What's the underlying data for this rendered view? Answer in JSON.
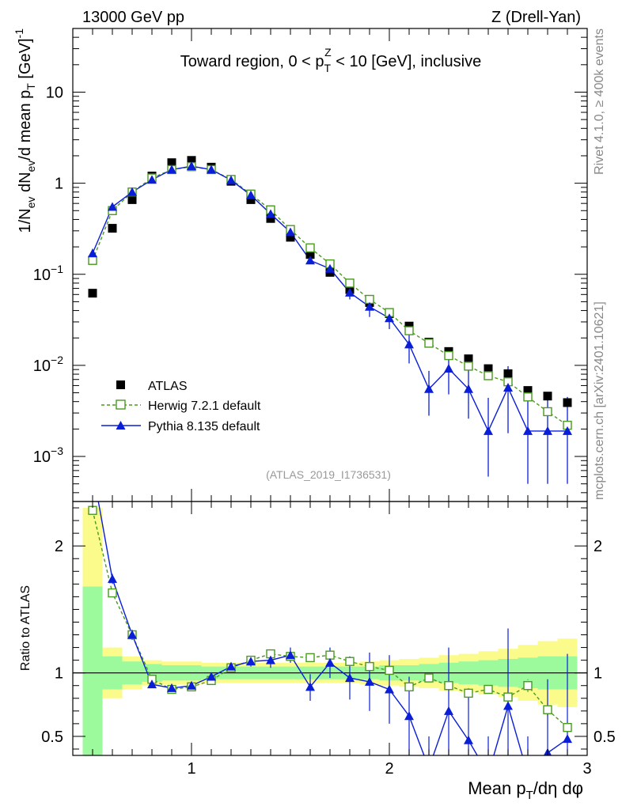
{
  "header": {
    "energy_label": "13000 GeV pp",
    "process_label": "Z (Drell-Yan)"
  },
  "side_labels": {
    "rivet": "Rivet 4.1.0, ≥ 400k events",
    "mcplots": "mcplots.cern.ch [arXiv:2401.10621]"
  },
  "colors": {
    "atlas": "#000000",
    "herwig": "#4a9a1e",
    "pythia": "#0a1ed8",
    "band_inner": "#9cf99c",
    "band_outer": "#fbfb8c"
  },
  "chart_data": [
    {
      "type": "scatter",
      "panel": "main",
      "title": "Toward region, 0 < p_T^Z < 10 [GeV], inclusive",
      "title_parts": {
        "pre": "Toward region, 0 < p",
        "sub": "T",
        "sup": "Z",
        "post": " < 10 [GeV], inclusive"
      },
      "ylabel": "1/N_ev dN_ev/d mean p_T [GeV]^-1",
      "ylabel_parts": {
        "a": "1/N",
        "a_sub": "ev",
        "b": " dN",
        "b_sub": "ev",
        "c": "/d mean p",
        "c_sub": "T",
        "d": " [GeV]",
        "d_sup": "-1"
      },
      "yscale": "log",
      "ylim": [
        0.00032,
        50
      ],
      "xlim": [
        0.4,
        3.0
      ],
      "yticks": [
        {
          "value": 10,
          "label": "10"
        },
        {
          "value": 1,
          "label": "1"
        },
        {
          "value": 0.1,
          "base": "10",
          "exp": "−1"
        },
        {
          "value": 0.01,
          "base": "10",
          "exp": "−2"
        },
        {
          "value": 0.001,
          "base": "10",
          "exp": "−3"
        }
      ],
      "watermark": "(ATLAS_2019_I1736531)",
      "legend": {
        "position": "bottom-left",
        "entries": [
          {
            "name": "ATLAS",
            "marker": "filled-square"
          },
          {
            "name": "Herwig 7.2.1 default",
            "marker": "open-square-dashed"
          },
          {
            "name": "Pythia 8.135 default",
            "marker": "filled-triangle"
          }
        ]
      },
      "x": [
        0.5,
        0.6,
        0.7,
        0.8,
        0.9,
        1.0,
        1.1,
        1.2,
        1.3,
        1.4,
        1.5,
        1.6,
        1.7,
        1.8,
        1.9,
        2.0,
        2.1,
        2.2,
        2.3,
        2.4,
        2.5,
        2.6,
        2.7,
        2.8,
        2.9
      ],
      "series": [
        {
          "name": "ATLAS",
          "values": [
            0.062,
            0.32,
            0.66,
            1.2,
            1.68,
            1.78,
            1.5,
            1.05,
            0.66,
            0.41,
            0.255,
            0.165,
            0.105,
            0.068,
            0.049,
            0.037,
            0.027,
            0.018,
            0.0142,
            0.0118,
            0.0092,
            0.0081,
            0.0053,
            0.0046,
            0.0039
          ]
        },
        {
          "name": "Herwig 7.2.1 default",
          "values": [
            0.142,
            0.5,
            0.8,
            1.14,
            1.41,
            1.52,
            1.41,
            1.1,
            0.76,
            0.51,
            0.31,
            0.195,
            0.13,
            0.08,
            0.053,
            0.038,
            0.024,
            0.0175,
            0.0128,
            0.0098,
            0.0077,
            0.0066,
            0.0045,
            0.0031,
            0.0022
          ]
        },
        {
          "name": "Pythia 8.135 default",
          "values": [
            0.17,
            0.55,
            0.8,
            1.09,
            1.41,
            1.54,
            1.41,
            1.08,
            0.74,
            0.46,
            0.29,
            0.142,
            0.115,
            0.063,
            0.044,
            0.033,
            0.017,
            0.0055,
            0.0092,
            0.0055,
            0.0019,
            0.0057,
            0.0019,
            0.0019,
            0.0019
          ],
          "err_low": [
            0.18,
            0.57,
            0.78,
            1.06,
            1.38,
            1.51,
            1.38,
            1.05,
            0.71,
            0.43,
            0.27,
            0.13,
            0.1,
            0.053,
            0.034,
            0.025,
            0.0105,
            0.0028,
            0.0048,
            0.0026,
            0.0006,
            0.0018,
            0.0005,
            0.0005,
            0.0005
          ],
          "err_high": [
            0.19,
            0.57,
            0.84,
            1.12,
            1.44,
            1.57,
            1.44,
            1.11,
            0.77,
            0.49,
            0.31,
            0.155,
            0.13,
            0.073,
            0.055,
            0.041,
            0.024,
            0.0087,
            0.014,
            0.0088,
            0.0044,
            0.0098,
            0.0045,
            0.0045,
            0.0045
          ]
        }
      ]
    },
    {
      "type": "line",
      "panel": "ratio",
      "ylabel": "Ratio to ATLAS",
      "xlabel": "Mean p_T/dη dφ",
      "xlabel_parts": {
        "a": "Mean p",
        "a_sub": "T",
        "b": "/dη dφ"
      },
      "ylim": [
        0.35,
        2.35
      ],
      "xlim": [
        0.4,
        3.0
      ],
      "yticks": [
        {
          "value": 0.5,
          "label": "0.5"
        },
        {
          "value": 1,
          "label": "1"
        },
        {
          "value": 2,
          "label": "2"
        }
      ],
      "xticks": [
        {
          "value": 1,
          "label": "1"
        },
        {
          "value": 2,
          "label": "2"
        },
        {
          "value": 3,
          "label": "3"
        }
      ],
      "x": [
        0.5,
        0.6,
        0.7,
        0.8,
        0.9,
        1.0,
        1.1,
        1.2,
        1.3,
        1.4,
        1.5,
        1.6,
        1.7,
        1.8,
        1.9,
        2.0,
        2.1,
        2.2,
        2.3,
        2.4,
        2.5,
        2.6,
        2.7,
        2.8,
        2.9
      ],
      "bands": {
        "bins": [
          [
            0.45,
            0.55
          ],
          [
            0.55,
            0.65
          ],
          [
            0.65,
            0.75
          ],
          [
            0.75,
            0.85
          ],
          [
            0.85,
            0.95
          ],
          [
            0.95,
            1.05
          ],
          [
            1.05,
            1.15
          ],
          [
            1.15,
            1.25
          ],
          [
            1.25,
            1.35
          ],
          [
            1.35,
            1.45
          ],
          [
            1.45,
            1.55
          ],
          [
            1.55,
            1.65
          ],
          [
            1.65,
            1.75
          ],
          [
            1.75,
            1.85
          ],
          [
            1.85,
            1.95
          ],
          [
            1.95,
            2.05
          ],
          [
            2.05,
            2.15
          ],
          [
            2.15,
            2.25
          ],
          [
            2.25,
            2.35
          ],
          [
            2.35,
            2.45
          ],
          [
            2.45,
            2.55
          ],
          [
            2.55,
            2.65
          ],
          [
            2.65,
            2.75
          ],
          [
            2.75,
            2.85
          ],
          [
            2.85,
            2.95
          ]
        ],
        "inner_low": [
          0.32,
          0.87,
          0.91,
          0.93,
          0.94,
          0.94,
          0.95,
          0.95,
          0.95,
          0.95,
          0.95,
          0.95,
          0.95,
          0.95,
          0.95,
          0.94,
          0.94,
          0.93,
          0.92,
          0.91,
          0.9,
          0.89,
          0.88,
          0.87,
          0.87
        ],
        "inner_high": [
          1.68,
          1.13,
          1.09,
          1.07,
          1.06,
          1.06,
          1.05,
          1.05,
          1.05,
          1.05,
          1.05,
          1.05,
          1.05,
          1.05,
          1.05,
          1.06,
          1.06,
          1.07,
          1.08,
          1.09,
          1.1,
          1.11,
          1.12,
          1.13,
          1.13
        ],
        "outer_low": [
          0.32,
          0.8,
          0.87,
          0.9,
          0.91,
          0.91,
          0.92,
          0.92,
          0.92,
          0.92,
          0.92,
          0.92,
          0.92,
          0.92,
          0.91,
          0.9,
          0.89,
          0.88,
          0.86,
          0.85,
          0.83,
          0.81,
          0.78,
          0.75,
          0.73
        ],
        "outer_high": [
          2.3,
          1.2,
          1.13,
          1.1,
          1.09,
          1.09,
          1.08,
          1.08,
          1.08,
          1.08,
          1.08,
          1.08,
          1.08,
          1.08,
          1.09,
          1.1,
          1.11,
          1.12,
          1.14,
          1.15,
          1.17,
          1.19,
          1.22,
          1.25,
          1.27
        ]
      },
      "series": [
        {
          "name": "Herwig 7.2.1 default",
          "values": [
            2.28,
            1.63,
            1.3,
            0.95,
            0.87,
            0.89,
            0.94,
            1.04,
            1.1,
            1.15,
            1.13,
            1.12,
            1.14,
            1.09,
            1.05,
            1.02,
            0.89,
            0.96,
            0.9,
            0.84,
            0.87,
            0.81,
            0.9,
            0.71,
            0.57
          ],
          "err_low": [
            2.28,
            1.61,
            1.28,
            0.93,
            0.85,
            0.87,
            0.92,
            1.02,
            1.08,
            1.13,
            1.11,
            1.1,
            1.11,
            1.07,
            1.03,
            1.0,
            0.86,
            0.93,
            0.86,
            0.8,
            0.84,
            0.78,
            0.85,
            0.66,
            0.57
          ],
          "err_high": [
            2.28,
            1.65,
            1.32,
            0.97,
            0.89,
            0.91,
            0.96,
            1.06,
            1.12,
            1.17,
            1.15,
            1.14,
            1.17,
            1.11,
            1.07,
            1.04,
            0.92,
            0.99,
            0.94,
            0.88,
            0.9,
            0.84,
            0.95,
            0.76,
            0.57
          ]
        },
        {
          "name": "Pythia 8.135 default",
          "values": [
            2.6,
            1.74,
            1.3,
            0.91,
            0.88,
            0.9,
            0.97,
            1.05,
            1.09,
            1.1,
            1.14,
            0.89,
            1.08,
            0.96,
            0.93,
            0.87,
            0.66,
            0.25,
            0.7,
            0.47,
            0.2,
            0.74,
            0.2,
            0.37,
            0.48
          ],
          "err_low": [
            2.6,
            1.7,
            1.26,
            0.88,
            0.85,
            0.87,
            0.94,
            1.02,
            1.05,
            1.04,
            1.08,
            0.78,
            0.96,
            0.79,
            0.7,
            0.6,
            0.35,
            0.1,
            0.22,
            0.1,
            0.1,
            0.1,
            0.1,
            0.1,
            0.1
          ],
          "err_high": [
            2.6,
            1.78,
            1.34,
            0.94,
            0.91,
            0.93,
            1.0,
            1.08,
            1.13,
            1.16,
            1.2,
            0.99,
            1.2,
            1.13,
            1.16,
            1.14,
            0.97,
            0.5,
            1.2,
            0.86,
            0.5,
            1.35,
            0.5,
            0.95,
            1.15
          ]
        }
      ]
    }
  ]
}
